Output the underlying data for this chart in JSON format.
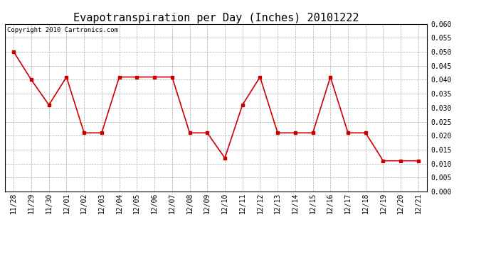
{
  "title": "Evapotranspiration per Day (Inches) 20101222",
  "copyright": "Copyright 2010 Cartronics.com",
  "labels": [
    "11/28",
    "11/29",
    "11/30",
    "12/01",
    "12/02",
    "12/03",
    "12/04",
    "12/05",
    "12/06",
    "12/07",
    "12/08",
    "12/09",
    "12/10",
    "12/11",
    "12/12",
    "12/13",
    "12/14",
    "12/15",
    "12/16",
    "12/17",
    "12/18",
    "12/19",
    "12/20",
    "12/21"
  ],
  "values": [
    0.05,
    0.04,
    0.031,
    0.041,
    0.021,
    0.021,
    0.041,
    0.041,
    0.041,
    0.041,
    0.021,
    0.021,
    0.012,
    0.031,
    0.041,
    0.021,
    0.021,
    0.021,
    0.041,
    0.021,
    0.021,
    0.011,
    0.011,
    0.011
  ],
  "ylim": [
    0.0,
    0.06
  ],
  "yticks": [
    0.0,
    0.005,
    0.01,
    0.015,
    0.02,
    0.025,
    0.03,
    0.035,
    0.04,
    0.045,
    0.05,
    0.055,
    0.06
  ],
  "line_color": "#cc0000",
  "marker": "s",
  "marker_size": 3,
  "background_color": "#ffffff",
  "grid_color": "#aaaaaa",
  "title_fontsize": 11,
  "copyright_fontsize": 6.5,
  "tick_fontsize": 7
}
